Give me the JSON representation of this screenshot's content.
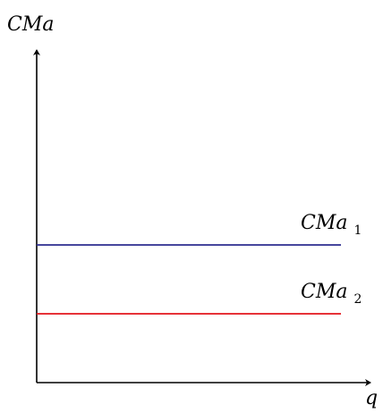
{
  "chart_data": {
    "type": "line",
    "ylabel": "CMa",
    "xlabel": "q",
    "series": [
      {
        "name": "CMa",
        "subscript": "1",
        "color": "#2b2b8f"
      },
      {
        "name": "CMa",
        "subscript": "2",
        "color": "#e3141b"
      }
    ],
    "axis_color": "#000000",
    "grid": false,
    "legend": "none"
  }
}
